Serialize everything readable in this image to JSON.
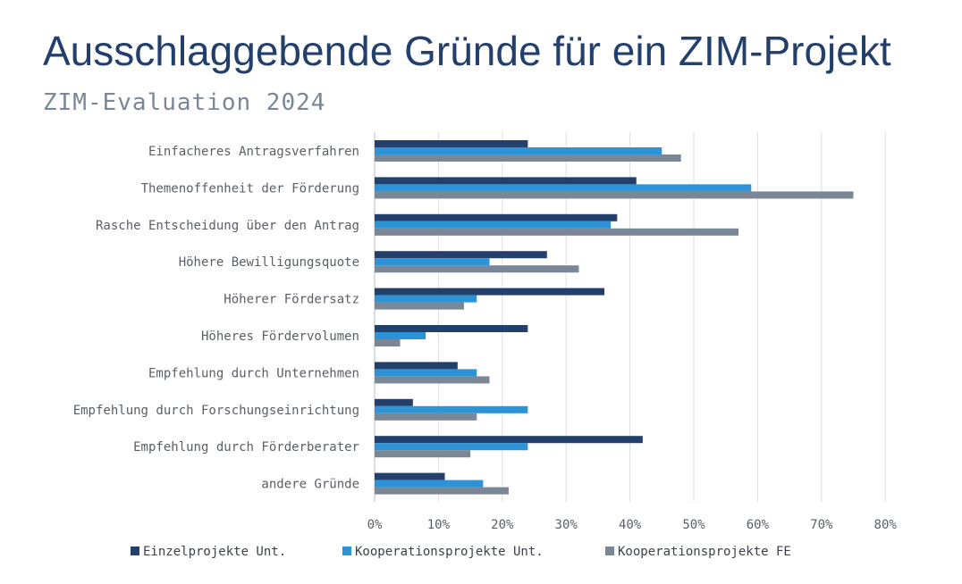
{
  "header": {
    "title": "Ausschlaggebende Gründe für ein ZIM-Projekt",
    "subtitle": "ZIM-Evaluation 2024"
  },
  "chart_data": {
    "type": "bar",
    "orientation": "horizontal",
    "title": "Ausschlaggebende Gründe für ein ZIM-Projekt",
    "subtitle": "ZIM-Evaluation 2024",
    "xlabel": "",
    "ylabel": "",
    "categories": [
      "Einfacheres Antragsverfahren",
      "Themenoffenheit der Förderung",
      "Rasche Entscheidung über den Antrag",
      "Höhere Bewilligungsquote",
      "Höherer Fördersatz",
      "Höheres Fördervolumen",
      "Empfehlung durch Unternehmen",
      "Empfehlung durch Forschungseinrichtung",
      "Empfehlung durch Förderberater",
      "andere Gründe"
    ],
    "series": [
      {
        "name": "Einzelprojekte Unt.",
        "color": "#233f6c",
        "values": [
          24,
          41,
          38,
          27,
          36,
          24,
          13,
          6,
          42,
          11
        ]
      },
      {
        "name": "Kooperationsprojekte Unt.",
        "color": "#2b93d6",
        "values": [
          45,
          59,
          37,
          18,
          16,
          8,
          16,
          24,
          24,
          17
        ]
      },
      {
        "name": "Kooperationsprojekte FE",
        "color": "#7a8796",
        "values": [
          48,
          75,
          57,
          32,
          14,
          4,
          18,
          16,
          15,
          21
        ]
      }
    ],
    "xlim": [
      0,
      80
    ],
    "xticks": [
      "0%",
      "10%",
      "20%",
      "30%",
      "40%",
      "50%",
      "60%",
      "70%",
      "80%"
    ],
    "grid": "vertical",
    "legend": "bottom"
  }
}
